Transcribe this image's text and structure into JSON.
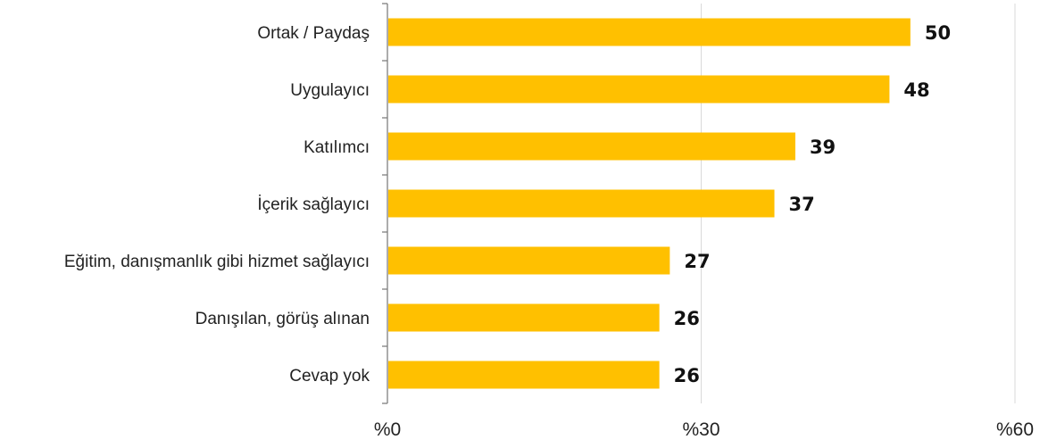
{
  "chart_data": {
    "type": "bar",
    "orientation": "horizontal",
    "categories": [
      "Ortak / Paydaş",
      "Uygulayıcı",
      "Katılımcı",
      "İçerik sağlayıcı",
      "Eğitim, danışmanlık gibi hizmet sağlayıcı",
      "Danışılan, görüş alınan",
      "Cevap yok"
    ],
    "values": [
      50,
      48,
      39,
      37,
      27,
      26,
      26
    ],
    "xlim": [
      0,
      60
    ],
    "x_ticks": [
      {
        "value": 0,
        "label": "%0"
      },
      {
        "value": 30,
        "label": "%30"
      },
      {
        "value": 60,
        "label": "%60"
      }
    ],
    "grid": true,
    "bar_color": "#FFC000",
    "title": "",
    "xlabel": "",
    "ylabel": ""
  }
}
